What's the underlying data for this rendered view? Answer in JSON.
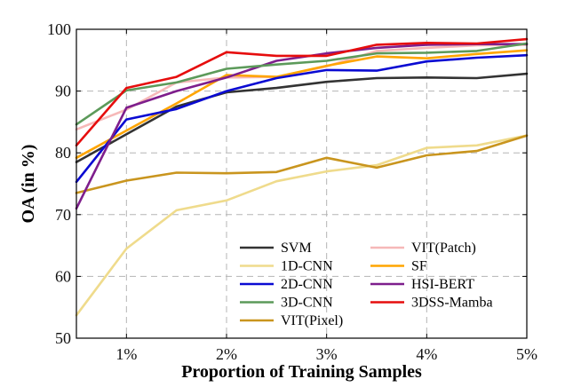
{
  "chart_data": {
    "type": "line",
    "title": "",
    "xlabel": "Proportion of Training Samples",
    "ylabel": "OA (in %)",
    "x": [
      0.5,
      1.0,
      1.5,
      2.0,
      2.5,
      3.0,
      3.5,
      4.0,
      4.5,
      5.0
    ],
    "xlim": [
      0.5,
      5.0
    ],
    "ylim": [
      50,
      100
    ],
    "x_ticks": [
      {
        "value": 1,
        "label": "1%"
      },
      {
        "value": 2,
        "label": "2%"
      },
      {
        "value": 3,
        "label": "3%"
      },
      {
        "value": 4,
        "label": "4%"
      },
      {
        "value": 5,
        "label": "5%"
      }
    ],
    "y_ticks": [
      {
        "value": 50,
        "label": "50"
      },
      {
        "value": 60,
        "label": "60"
      },
      {
        "value": 70,
        "label": "70"
      },
      {
        "value": 80,
        "label": "80"
      },
      {
        "value": 90,
        "label": "90"
      },
      {
        "value": 100,
        "label": "100"
      }
    ],
    "grid": true,
    "legend_position": "bottom-right",
    "series": [
      {
        "name": "SVM",
        "color": "#333333",
        "values": [
          78.5,
          83.0,
          87.5,
          89.8,
          90.5,
          91.5,
          92.1,
          92.2,
          92.1,
          92.8
        ]
      },
      {
        "name": "1D-CNN",
        "color": "#efdb8c",
        "values": [
          53.7,
          64.5,
          70.7,
          72.3,
          75.4,
          77.0,
          78.0,
          80.8,
          81.2,
          82.8
        ]
      },
      {
        "name": "2D-CNN",
        "color": "#0a0ad2",
        "values": [
          75.3,
          85.4,
          87.1,
          90.0,
          92.1,
          93.4,
          93.3,
          94.8,
          95.4,
          95.8
        ]
      },
      {
        "name": "3D-CNN",
        "color": "#5c9a5a",
        "values": [
          84.6,
          90.1,
          91.4,
          93.6,
          94.3,
          94.9,
          96.1,
          96.2,
          96.5,
          97.7
        ]
      },
      {
        "name": "VIT(Pixel)",
        "color": "#c9951e",
        "values": [
          73.5,
          75.5,
          76.8,
          76.7,
          76.9,
          79.2,
          77.6,
          79.6,
          80.3,
          82.8
        ]
      },
      {
        "name": "VIT(Patch)",
        "color": "#f6b8b8",
        "values": [
          83.8,
          87.0,
          91.4,
          92.2,
          92.3,
          94.0,
          96.5,
          97.0,
          97.4,
          97.5
        ]
      },
      {
        "name": "SF",
        "color": "#ffa500",
        "values": [
          79.2,
          83.6,
          88.0,
          92.6,
          92.3,
          94.1,
          95.6,
          95.3,
          96.0,
          96.6
        ]
      },
      {
        "name": "HSI-BERT",
        "color": "#7e1e8c",
        "values": [
          71.0,
          87.3,
          90.0,
          92.2,
          94.9,
          96.1,
          97.0,
          97.5,
          97.6,
          97.6
        ]
      },
      {
        "name": "3DSS-Mamba",
        "color": "#e60d0d",
        "values": [
          81.2,
          90.5,
          92.3,
          96.3,
          95.7,
          95.7,
          97.5,
          97.8,
          97.7,
          98.4
        ]
      }
    ]
  }
}
